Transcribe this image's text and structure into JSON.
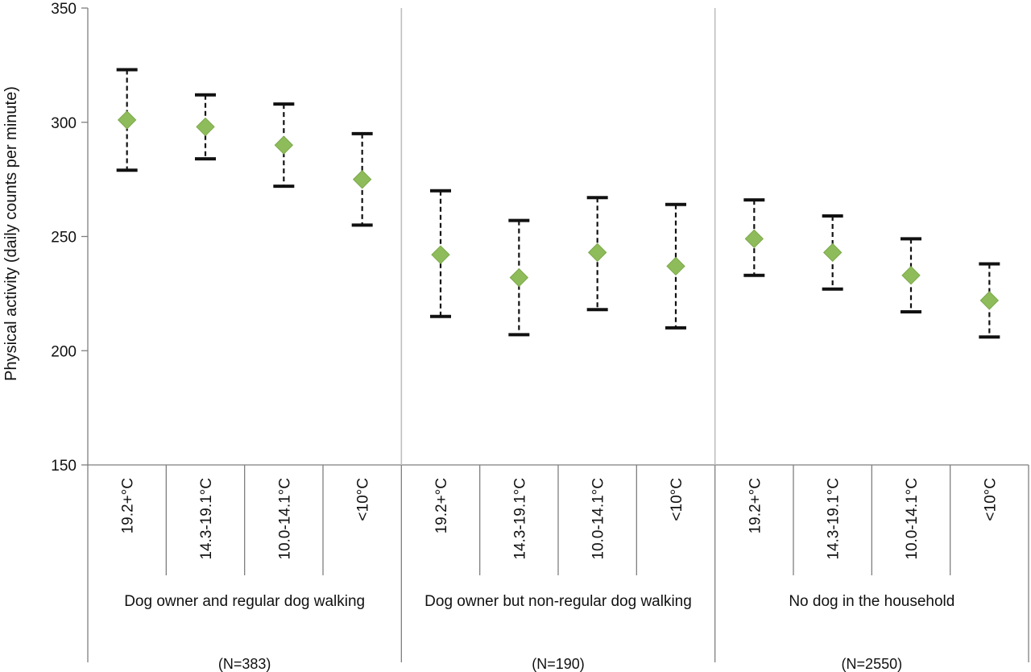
{
  "chart_data": {
    "type": "scatter",
    "title": "",
    "ylabel": "Physical activity (daily counts per minute)",
    "ylim": [
      150,
      350
    ],
    "yticks": [
      150,
      200,
      250,
      300,
      350
    ],
    "grid": false,
    "marker_color": "#8fbc5a",
    "groups": [
      {
        "name": "Dog owner and regular dog walking",
        "n_label": "(N=383)",
        "points": [
          {
            "category": "19.2+°C",
            "value": 301,
            "low": 279,
            "high": 323
          },
          {
            "category": "14.3-19.1°C",
            "value": 298,
            "low": 284,
            "high": 312
          },
          {
            "category": "10.0-14.1°C",
            "value": 290,
            "low": 272,
            "high": 308
          },
          {
            "category": "<10°C",
            "value": 275,
            "low": 255,
            "high": 295
          }
        ]
      },
      {
        "name": "Dog owner but non-regular dog walking",
        "n_label": "(N=190)",
        "points": [
          {
            "category": "19.2+°C",
            "value": 242,
            "low": 215,
            "high": 270
          },
          {
            "category": "14.3-19.1°C",
            "value": 232,
            "low": 207,
            "high": 257
          },
          {
            "category": "10.0-14.1°C",
            "value": 243,
            "low": 218,
            "high": 267
          },
          {
            "category": "<10°C",
            "value": 237,
            "low": 210,
            "high": 264
          }
        ]
      },
      {
        "name": "No dog in the household",
        "n_label": "(N=2550)",
        "points": [
          {
            "category": "19.2+°C",
            "value": 249,
            "low": 233,
            "high": 266
          },
          {
            "category": "14.3-19.1°C",
            "value": 243,
            "low": 227,
            "high": 259
          },
          {
            "category": "10.0-14.1°C",
            "value": 233,
            "low": 217,
            "high": 249
          },
          {
            "category": "<10°C",
            "value": 222,
            "low": 206,
            "high": 238
          }
        ]
      }
    ]
  }
}
